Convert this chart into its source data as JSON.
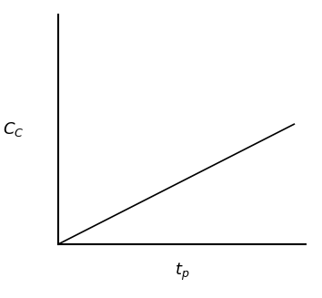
{
  "title": "",
  "xlabel_label": "$t_p$",
  "ylabel_label": "$C_C$",
  "line_x": [
    0,
    1
  ],
  "line_y": [
    0,
    0.55
  ],
  "line_color": "#000000",
  "line_width": 1.2,
  "background_color": "#ffffff",
  "xlim": [
    0,
    1.05
  ],
  "ylim": [
    0,
    1.05
  ],
  "xlabel_fontsize": 13,
  "ylabel_fontsize": 13,
  "axis_color": "#000000",
  "spine_linewidth": 1.5
}
